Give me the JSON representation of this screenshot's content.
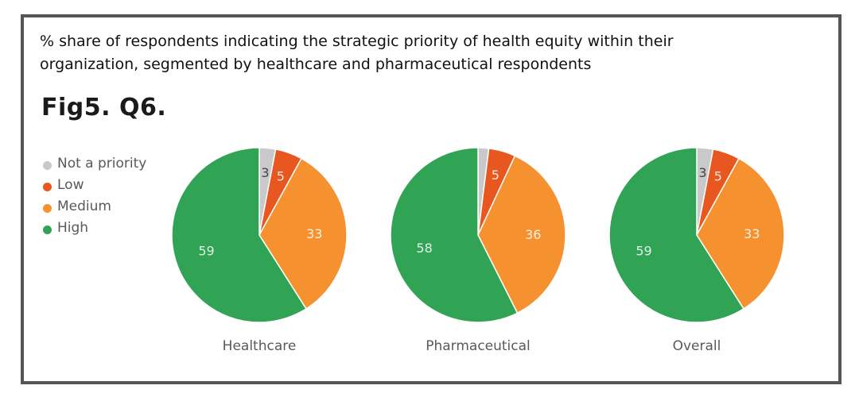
{
  "subtitle": "% share of respondents indicating the strategic priority of health equity within their organization, segmented by healthcare and pharmaceutical respondents",
  "figure_title": "Fig5. Q6.",
  "legend": [
    {
      "label": "Not a priority",
      "color": "#c9c9c9"
    },
    {
      "label": "Low",
      "color": "#e8571f"
    },
    {
      "label": "Medium",
      "color": "#f5922f"
    },
    {
      "label": "High",
      "color": "#31a354"
    }
  ],
  "chart_data": [
    {
      "type": "pie",
      "title": "Healthcare",
      "categories": [
        "Not a priority",
        "Low",
        "Medium",
        "High"
      ],
      "values": [
        3,
        5,
        33,
        59
      ],
      "data_labels": [
        "3",
        "5",
        "33",
        "59"
      ]
    },
    {
      "type": "pie",
      "title": "Pharmaceutical",
      "categories": [
        "Not a priority",
        "Low",
        "Medium",
        "High"
      ],
      "values": [
        2,
        5,
        36,
        58
      ],
      "data_labels": [
        "",
        "5",
        "36",
        "58"
      ]
    },
    {
      "type": "pie",
      "title": "Overall",
      "categories": [
        "Not a priority",
        "Low",
        "Medium",
        "High"
      ],
      "values": [
        3,
        5,
        33,
        59
      ],
      "data_labels": [
        "3",
        "5",
        "33",
        "59"
      ]
    }
  ]
}
